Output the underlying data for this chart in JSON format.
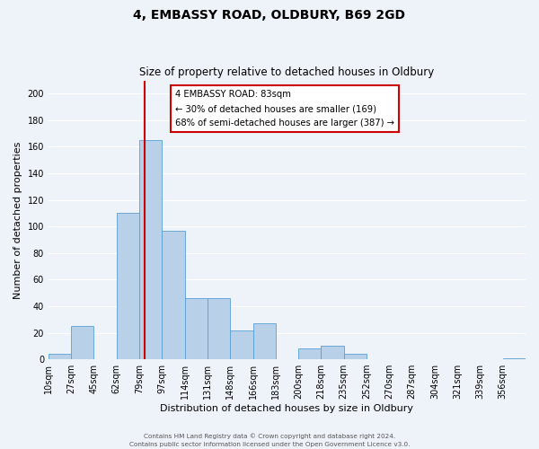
{
  "title": "4, EMBASSY ROAD, OLDBURY, B69 2GD",
  "subtitle": "Size of property relative to detached houses in Oldbury",
  "xlabel": "Distribution of detached houses by size in Oldbury",
  "ylabel": "Number of detached properties",
  "bar_color": "#b8d0e8",
  "bar_edge_color": "#5a9fd4",
  "bin_labels": [
    "10sqm",
    "27sqm",
    "45sqm",
    "62sqm",
    "79sqm",
    "97sqm",
    "114sqm",
    "131sqm",
    "148sqm",
    "166sqm",
    "183sqm",
    "200sqm",
    "218sqm",
    "235sqm",
    "252sqm",
    "270sqm",
    "287sqm",
    "304sqm",
    "321sqm",
    "339sqm",
    "356sqm"
  ],
  "bar_heights": [
    4,
    25,
    0,
    110,
    165,
    97,
    46,
    46,
    22,
    27,
    0,
    8,
    10,
    4,
    0,
    0,
    0,
    0,
    0,
    0,
    1
  ],
  "vline_color": "#cc0000",
  "ylim": [
    0,
    210
  ],
  "yticks": [
    0,
    20,
    40,
    60,
    80,
    100,
    120,
    140,
    160,
    180,
    200
  ],
  "annotation_title": "4 EMBASSY ROAD: 83sqm",
  "annotation_line1": "← 30% of detached houses are smaller (169)",
  "annotation_line2": "68% of semi-detached houses are larger (387) →",
  "annotation_box_color": "#ffffff",
  "annotation_box_edge_color": "#cc0000",
  "footer1": "Contains HM Land Registry data © Crown copyright and database right 2024.",
  "footer2": "Contains public sector information licensed under the Open Government Licence v3.0.",
  "bg_color": "#eef2f9",
  "grid_color": "#ffffff"
}
